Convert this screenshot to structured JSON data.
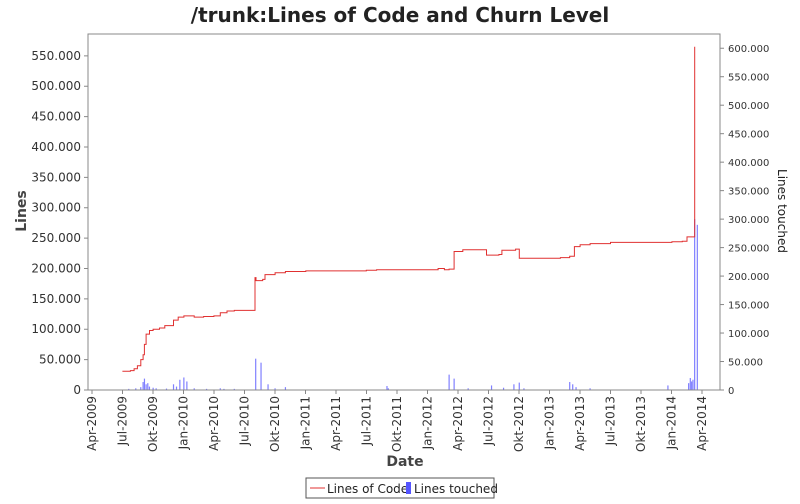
{
  "chart_data": {
    "type": "line",
    "title": "/trunk:Lines of Code and Churn Level",
    "xlabel": "Date",
    "ylabel": "Lines",
    "ylabel_right": "Lines touched",
    "x_ticks": [
      "Apr-2009",
      "Jul-2009",
      "Okt-2009",
      "Jan-2010",
      "Apr-2010",
      "Jul-2010",
      "Okt-2010",
      "Jan-2011",
      "Apr-2011",
      "Jul-2011",
      "Okt-2011",
      "Jan-2012",
      "Apr-2012",
      "Jul-2012",
      "Okt-2012",
      "Jan-2013",
      "Apr-2013",
      "Jul-2013",
      "Okt-2013",
      "Jan-2014",
      "Apr-2014"
    ],
    "y_ticks_left": [
      "0",
      "50.000",
      "100.000",
      "150.000",
      "200.000",
      "250.000",
      "300.000",
      "350.000",
      "400.000",
      "450.000",
      "500.000",
      "550.000"
    ],
    "y_ticks_right": [
      "0",
      "50.000",
      "100.000",
      "150.000",
      "200.000",
      "250.000",
      "300.000",
      "350.000",
      "400.000",
      "450.000",
      "500.000",
      "550.000",
      "600.000"
    ],
    "ylim_left": [
      0,
      586000
    ],
    "ylim_right": [
      0,
      625000
    ],
    "legend_position": "bottom",
    "colors": {
      "loc": "#e03030",
      "churn": "#5555ff",
      "plot_border": "#888888"
    },
    "series": [
      {
        "name": "Lines of Code",
        "axis": "left",
        "points": [
          [
            "2009-07-01",
            31000
          ],
          [
            "2009-07-25",
            32000
          ],
          [
            "2009-08-05",
            35000
          ],
          [
            "2009-08-15",
            40000
          ],
          [
            "2009-08-25",
            50000
          ],
          [
            "2009-09-01",
            58000
          ],
          [
            "2009-09-05",
            75000
          ],
          [
            "2009-09-10",
            92000
          ],
          [
            "2009-09-20",
            98000
          ],
          [
            "2009-10-01",
            100000
          ],
          [
            "2009-10-20",
            102000
          ],
          [
            "2009-11-05",
            106000
          ],
          [
            "2009-12-01",
            115000
          ],
          [
            "2009-12-15",
            120000
          ],
          [
            "2010-01-01",
            122000
          ],
          [
            "2010-02-01",
            120000
          ],
          [
            "2010-03-01",
            121000
          ],
          [
            "2010-04-01",
            122000
          ],
          [
            "2010-04-20",
            127000
          ],
          [
            "2010-05-10",
            130000
          ],
          [
            "2010-06-01",
            131000
          ],
          [
            "2010-08-01",
            131000
          ],
          [
            "2010-08-02",
            185000
          ],
          [
            "2010-08-05",
            180000
          ],
          [
            "2010-08-25",
            182000
          ],
          [
            "2010-09-01",
            190000
          ],
          [
            "2010-10-01",
            193000
          ],
          [
            "2010-11-01",
            195000
          ],
          [
            "2011-01-01",
            196000
          ],
          [
            "2011-07-01",
            197000
          ],
          [
            "2011-08-01",
            198000
          ],
          [
            "2012-02-01",
            200000
          ],
          [
            "2012-02-20",
            198000
          ],
          [
            "2012-03-05",
            199000
          ],
          [
            "2012-03-20",
            228000
          ],
          [
            "2012-04-15",
            231000
          ],
          [
            "2012-06-20",
            231000
          ],
          [
            "2012-06-25",
            222000
          ],
          [
            "2012-08-01",
            223000
          ],
          [
            "2012-08-10",
            230000
          ],
          [
            "2012-09-20",
            232000
          ],
          [
            "2012-10-01",
            217000
          ],
          [
            "2013-02-01",
            218000
          ],
          [
            "2013-03-01",
            220000
          ],
          [
            "2013-03-15",
            236000
          ],
          [
            "2013-04-01",
            239000
          ],
          [
            "2013-05-01",
            241000
          ],
          [
            "2013-07-01",
            243000
          ],
          [
            "2014-01-01",
            244000
          ],
          [
            "2014-02-01",
            245000
          ],
          [
            "2014-02-15",
            252000
          ],
          [
            "2014-03-05",
            252000
          ],
          [
            "2014-03-10",
            565000
          ]
        ]
      },
      {
        "name": "Lines touched",
        "axis": "right",
        "bars": [
          [
            "2009-07-20",
            2000
          ],
          [
            "2009-08-10",
            3000
          ],
          [
            "2009-08-25",
            5000
          ],
          [
            "2009-09-01",
            14000
          ],
          [
            "2009-09-05",
            20000
          ],
          [
            "2009-09-10",
            10000
          ],
          [
            "2009-09-15",
            12000
          ],
          [
            "2009-09-20",
            6000
          ],
          [
            "2009-10-01",
            4000
          ],
          [
            "2009-10-10",
            3000
          ],
          [
            "2009-11-10",
            2500
          ],
          [
            "2009-12-01",
            10000
          ],
          [
            "2009-12-10",
            6000
          ],
          [
            "2009-12-20",
            18000
          ],
          [
            "2010-01-01",
            22000
          ],
          [
            "2010-01-10",
            15000
          ],
          [
            "2010-02-01",
            3000
          ],
          [
            "2010-03-10",
            2000
          ],
          [
            "2010-04-20",
            3000
          ],
          [
            "2010-05-01",
            2000
          ],
          [
            "2010-06-01",
            2000
          ],
          [
            "2010-08-04",
            55000
          ],
          [
            "2010-08-20",
            48000
          ],
          [
            "2010-09-10",
            10000
          ],
          [
            "2010-10-01",
            3000
          ],
          [
            "2010-11-01",
            5000
          ],
          [
            "2011-09-01",
            7000
          ],
          [
            "2011-09-05",
            3000
          ],
          [
            "2012-03-05",
            27000
          ],
          [
            "2012-03-20",
            20000
          ],
          [
            "2012-05-01",
            3000
          ],
          [
            "2012-07-10",
            8000
          ],
          [
            "2012-08-15",
            4000
          ],
          [
            "2012-09-15",
            10000
          ],
          [
            "2012-10-01",
            13000
          ],
          [
            "2012-10-15",
            3000
          ],
          [
            "2013-03-01",
            14000
          ],
          [
            "2013-03-10",
            10000
          ],
          [
            "2013-03-20",
            5000
          ],
          [
            "2013-05-01",
            3000
          ],
          [
            "2013-12-20",
            8000
          ],
          [
            "2014-02-20",
            12000
          ],
          [
            "2014-02-25",
            21000
          ],
          [
            "2014-03-01",
            15000
          ],
          [
            "2014-03-05",
            18000
          ],
          [
            "2014-03-10",
            300000
          ],
          [
            "2014-03-18",
            290000
          ]
        ]
      }
    ]
  }
}
